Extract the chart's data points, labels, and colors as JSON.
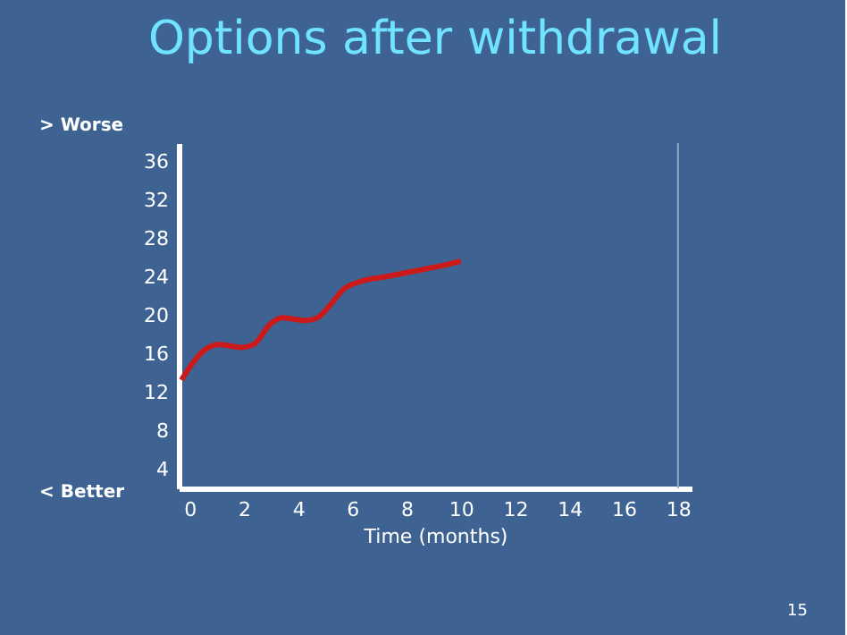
{
  "chart_data": {
    "type": "line",
    "title": "Options after withdrawal",
    "xlabel": "Time (months)",
    "annotations": [
      "> Worse",
      "< Better",
      "15"
    ],
    "x": [
      -0.3,
      0.64,
      1.07,
      1.93,
      2.36,
      3.0,
      3.43,
      4.29,
      4.72,
      5.15,
      5.69,
      6.22,
      7.3,
      8.37,
      9.44,
      10.0
    ],
    "series": [
      {
        "color": "#cc1a1a",
        "values": [
          13.3,
          16.6,
          17.0,
          16.7,
          17.0,
          19.2,
          19.8,
          19.5,
          19.8,
          21.0,
          22.8,
          23.5,
          24.1,
          24.7,
          25.3,
          25.7
        ]
      }
    ],
    "xlim": [
      -0.4,
      18.5
    ],
    "ylim": [
      2,
      38
    ],
    "xticks": [
      0,
      2,
      4,
      6,
      8,
      10,
      12,
      14,
      16,
      18
    ],
    "yticks": [
      4,
      8,
      12,
      16,
      20,
      24,
      28,
      32,
      36
    ],
    "ref_lines": [
      {
        "axis": "x",
        "value": 18,
        "color": "#8fa9c9"
      }
    ],
    "grid": false,
    "marker": "none",
    "line_style": "solid"
  }
}
